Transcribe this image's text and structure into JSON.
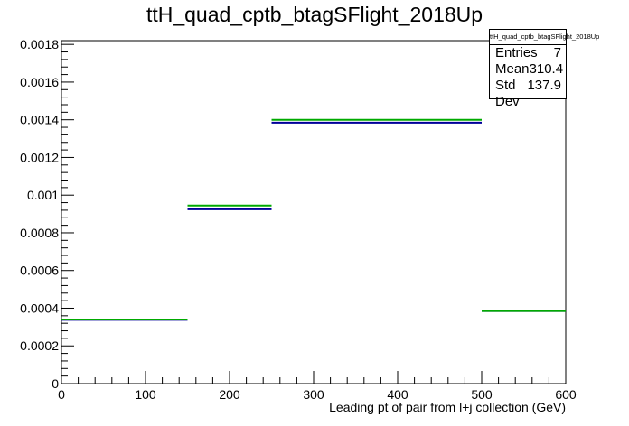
{
  "chart_data": {
    "type": "step-histogram",
    "title": "ttH_quad_cptb_btagSFlight_2018Up",
    "xlabel": "Leading pt of pair from l+j collection (GeV)",
    "ylabel": "",
    "xlim": [
      0,
      600
    ],
    "ylim": [
      0,
      0.00182
    ],
    "x_ticks": [
      "0",
      "100",
      "200",
      "300",
      "400",
      "500",
      "600"
    ],
    "y_ticks": [
      "0",
      "0.0002",
      "0.0004",
      "0.0006",
      "0.0008",
      "0.001",
      "0.0012",
      "0.0014",
      "0.0016",
      "0.0018"
    ],
    "bin_edges": [
      0,
      150,
      250,
      500,
      600
    ],
    "series": [
      {
        "color": "#000099",
        "values": [
          0.000338,
          0.000925,
          0.001385,
          0.000385
        ]
      },
      {
        "color": "#00aa00",
        "values": [
          0.00034,
          0.000945,
          0.0014,
          0.000385
        ]
      }
    ],
    "grid": false,
    "legend": "none"
  },
  "stats": {
    "title": "ttH_quad_cptb_btagSFlight_2018Up",
    "rows": [
      {
        "label": "Entries",
        "value": "7"
      },
      {
        "label": "Mean",
        "value": "310.4"
      },
      {
        "label": "Std Dev",
        "value": "137.9"
      }
    ]
  }
}
